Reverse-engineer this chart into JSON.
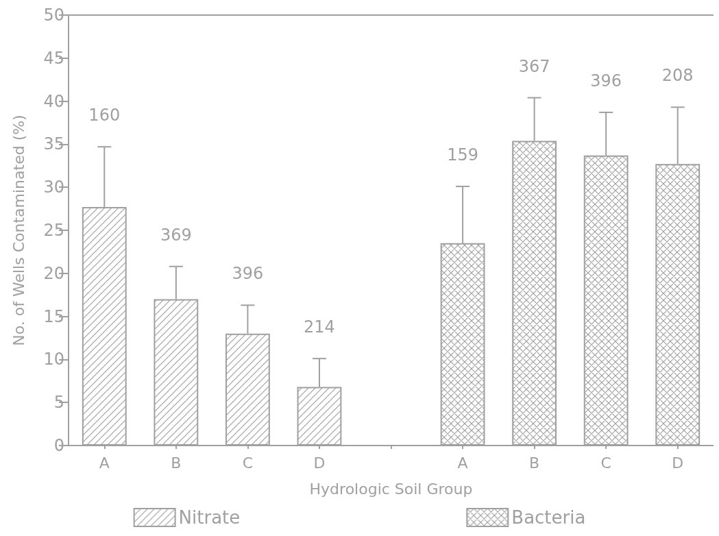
{
  "chart_data": {
    "type": "bar",
    "xlabel": "Hydrologic Soil Group",
    "ylabel": "No. of Wells Contaminated (%)",
    "categories": [
      "A",
      "B",
      "C",
      "D",
      null,
      "A",
      "B",
      "C",
      "D"
    ],
    "series": [
      {
        "name": "Nitrate",
        "color": "#a0a0a0",
        "values": [
          27.7,
          17.0,
          13.0,
          6.8,
          null,
          null,
          null,
          null,
          null
        ],
        "errors": [
          [
            27.7,
            34.7
          ],
          [
            17.0,
            20.8
          ],
          [
            13.0,
            16.3
          ],
          [
            6.8,
            10.1
          ],
          null,
          null,
          null,
          null,
          null
        ]
      },
      {
        "name": "Bacteria",
        "color": "#a0a0a0",
        "values": [
          null,
          null,
          null,
          null,
          null,
          23.5,
          35.4,
          33.7,
          32.7
        ],
        "errors": [
          null,
          null,
          null,
          null,
          null,
          [
            23.5,
            30.1
          ],
          [
            35.4,
            40.4
          ],
          [
            33.7,
            38.7
          ],
          [
            32.7,
            39.3
          ]
        ]
      }
    ],
    "annotations": [
      {
        "text": "160",
        "x": "A",
        "y": 34.7
      },
      {
        "text": "369",
        "x": "B",
        "y": 20.8
      },
      {
        "text": "396",
        "x": "C",
        "y": 16.3
      },
      {
        "text": "214",
        "x": "D",
        "y": 10.1
      },
      "159",
      "367",
      "396",
      "208"
    ],
    "ylim": [
      0,
      50
    ],
    "yticks": [
      0,
      5,
      10,
      15,
      20,
      25,
      30,
      35,
      40,
      45,
      50
    ],
    "grid": false,
    "legend": "bottom"
  }
}
